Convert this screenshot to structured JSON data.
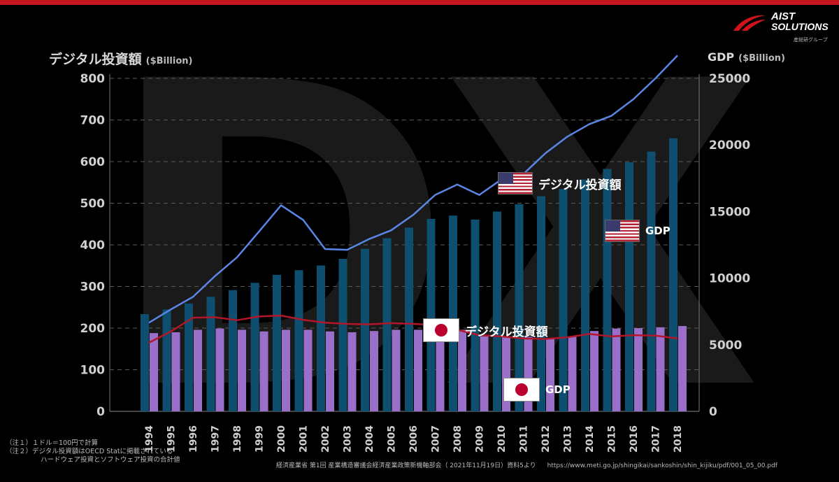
{
  "header": {
    "left_axis_title": "デジタル投資額",
    "left_axis_unit": "($Billion)",
    "right_axis_title": "GDP",
    "right_axis_unit": "($Billion)",
    "watermark": "DX"
  },
  "logo": {
    "name_line1": "AIST",
    "name_line2": "SOLUTIONS",
    "sub": "産総研グループ"
  },
  "callouts": {
    "us_digital": "デジタル投資額",
    "us_gdp": "GDP",
    "jp_digital": "デジタル投資額",
    "jp_gdp": "GDP"
  },
  "notes": {
    "line1": "（注１）１ドル＝100円で計算",
    "line2": "（注２）デジタル投資額はOECD Statに掲載されている",
    "line3": "ハードウェア投資とソフトウェア投資の合計値"
  },
  "source": {
    "text": "経済産業省 第1回 産業構造審議会経済産業政策新機軸部会（ 2021年11月19日）資料5より",
    "url": "https://www.meti.go.jp/shingikai/sankoshin/shin_kijiku/pdf/001_05_00.pdf"
  },
  "colors": {
    "us_bar": "#0e4e6e",
    "jp_bar": "#9a6fc9",
    "us_line": "#5b86e5",
    "jp_line": "#b3152a",
    "grid": "#5a5a5a",
    "accent_top": "#c4161c"
  },
  "chart_data": {
    "type": "bar",
    "categories": [
      "1994",
      "1995",
      "1996",
      "1997",
      "1998",
      "1999",
      "2000",
      "2001",
      "2002",
      "2003",
      "2004",
      "2005",
      "2006",
      "2007",
      "2008",
      "2009",
      "2010",
      "2011",
      "2012",
      "2013",
      "2014",
      "2015",
      "2016",
      "2017",
      "2018"
    ],
    "left_axis": {
      "label": "デジタル投資額 ($Billion)",
      "ylim": [
        0,
        800
      ],
      "ticks": [
        0,
        100,
        200,
        300,
        400,
        500,
        600,
        700,
        800
      ]
    },
    "right_axis": {
      "label": "GDP ($Billion)",
      "ylim": [
        0,
        25000
      ],
      "ticks": [
        0,
        5000,
        10000,
        15000,
        20000,
        25000
      ]
    },
    "grid": true,
    "series": [
      {
        "kind": "bar",
        "axis": "right",
        "values": [
          7300,
          7650,
          8100,
          8600,
          9100,
          9650,
          10250,
          10600,
          10950,
          11450,
          12200,
          13000,
          13800,
          14450,
          14700,
          14400,
          15000,
          15550,
          16150,
          16700,
          17400,
          18200,
          18700,
          19500,
          20500
        ]
      },
      {
        "kind": "bar",
        "axis": "left",
        "values": [
          188,
          190,
          196,
          199,
          196,
          192,
          196,
          196,
          192,
          190,
          193,
          196,
          196,
          198,
          196,
          180,
          180,
          179,
          176,
          180,
          193,
          199,
          200,
          202,
          205
        ]
      },
      {
        "kind": "line",
        "axis": "left",
        "values": [
          213,
          245,
          275,
          325,
          370,
          432,
          495,
          460,
          390,
          388,
          414,
          435,
          472,
          520,
          545,
          520,
          557,
          570,
          620,
          660,
          690,
          710,
          750,
          800,
          855
        ]
      },
      {
        "kind": "line",
        "axis": "left",
        "values": [
          165,
          192,
          225,
          226,
          219,
          228,
          230,
          220,
          213,
          210,
          209,
          212,
          210,
          208,
          196,
          183,
          180,
          175,
          174,
          178,
          186,
          180,
          183,
          182,
          175
        ]
      }
    ]
  }
}
